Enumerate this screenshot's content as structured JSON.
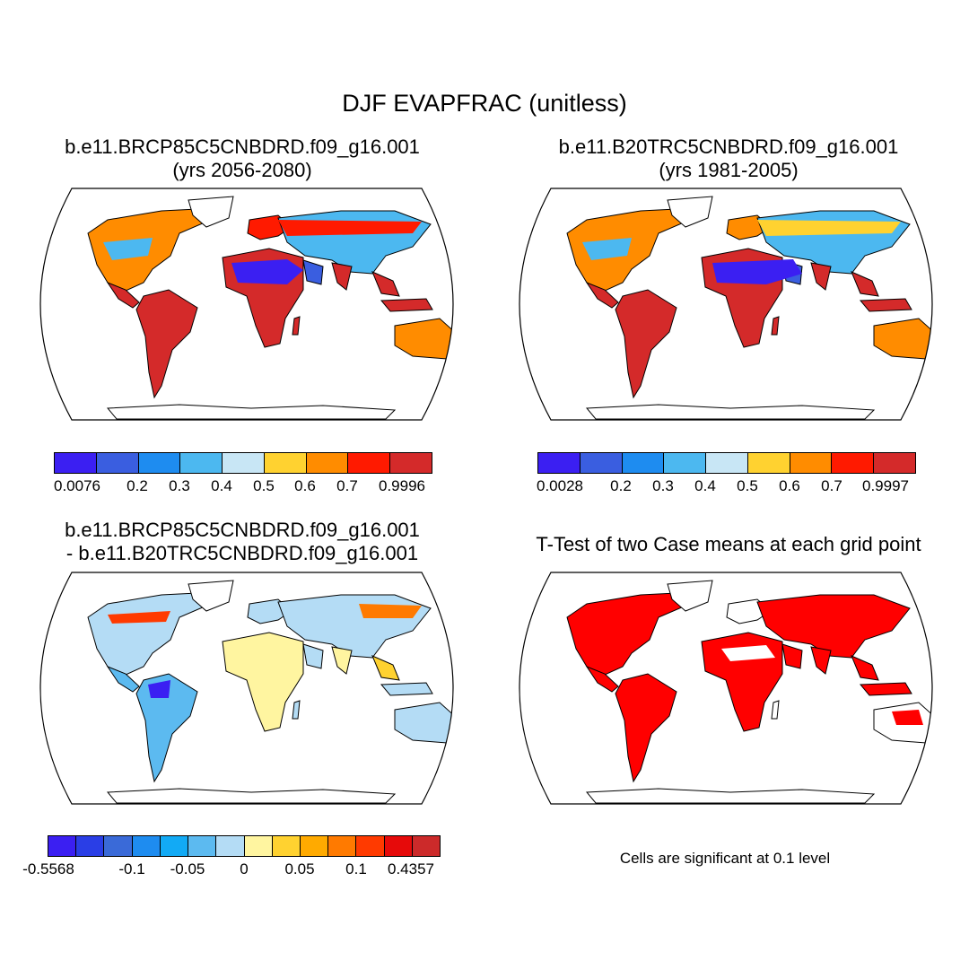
{
  "figure": {
    "title": "DJF EVAPFRAC (unitless)"
  },
  "panels": {
    "tl": {
      "title_line1": "b.e11.BRCP85C5CNBDRD.f09_g16.001",
      "title_line2": "(yrs 2056-2080)"
    },
    "tr": {
      "title_line1": "b.e11.B20TRC5CNBDRD.f09_g16.001",
      "title_line2": "(yrs 1981-2005)"
    },
    "bl": {
      "title_line1": "b.e11.BRCP85C5CNBDRD.f09_g16.001",
      "title_line2": "- b.e11.B20TRC5CNBDRD.f09_g16.001"
    },
    "br": {
      "title_line1": "T-Test of two Case means at each grid point",
      "note": "Cells are significant at 0.1 level"
    }
  },
  "colorbars": {
    "tl": {
      "colors": [
        "#3b1ff2",
        "#3a5ee0",
        "#1e8cf0",
        "#4cb8f0",
        "#c8e6f5",
        "#ffd230",
        "#ff8c00",
        "#ff1a00",
        "#d42a2a"
      ],
      "labels": [
        "0.0076",
        "0.2",
        "0.3",
        "0.4",
        "0.5",
        "0.6",
        "0.7",
        "0.9996"
      ]
    },
    "tr": {
      "colors": [
        "#3b1ff2",
        "#3a5ee0",
        "#1e8cf0",
        "#4cb8f0",
        "#c8e6f5",
        "#ffd230",
        "#ff8c00",
        "#ff1a00",
        "#d42a2a"
      ],
      "labels": [
        "0.0028",
        "0.2",
        "0.3",
        "0.4",
        "0.5",
        "0.6",
        "0.7",
        "0.9997"
      ]
    },
    "bl": {
      "colors": [
        "#3b1ff2",
        "#2a3ee6",
        "#3a6ad8",
        "#1e8cf0",
        "#12aaf5",
        "#5cbaf0",
        "#b4dcf5",
        "#fff5a0",
        "#ffd230",
        "#ffaa00",
        "#ff7a00",
        "#ff3a00",
        "#e60a0a",
        "#cc2a2a"
      ],
      "labels": [
        "-0.5568",
        "-0.1",
        "-0.05",
        "0",
        "0.05",
        "0.1",
        "0.4357"
      ]
    }
  },
  "chart_data": [
    {
      "type": "heatmap",
      "title": "b.e11.BRCP85C5CNBDRD.f09_g16.001 (yrs 2056-2080)",
      "colorbar_labels": [
        "0.0076",
        "0.2",
        "0.3",
        "0.4",
        "0.5",
        "0.6",
        "0.7",
        "0.9996"
      ],
      "colorbar_range": [
        0.0076,
        0.9996
      ]
    },
    {
      "type": "heatmap",
      "title": "b.e11.B20TRC5CNBDRD.f09_g16.001 (yrs 1981-2005)",
      "colorbar_labels": [
        "0.0028",
        "0.2",
        "0.3",
        "0.4",
        "0.5",
        "0.6",
        "0.7",
        "0.9997"
      ],
      "colorbar_range": [
        0.0028,
        0.9997
      ]
    },
    {
      "type": "heatmap",
      "title": "b.e11.BRCP85C5CNBDRD.f09_g16.001 - b.e11.B20TRC5CNBDRD.f09_g16.001",
      "colorbar_labels": [
        "-0.5568",
        "-0.1",
        "-0.05",
        "0",
        "0.05",
        "0.1",
        "0.4357"
      ],
      "colorbar_range": [
        -0.5568,
        0.4357
      ]
    },
    {
      "type": "heatmap",
      "title": "T-Test of two Case means at each grid point",
      "annotation": "Cells are significant at 0.1 level"
    }
  ]
}
